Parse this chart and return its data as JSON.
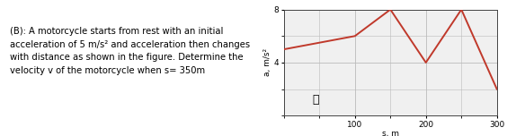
{
  "xlabel": "s, m",
  "ylabel": "a, m/s²",
  "xlim": [
    0,
    300
  ],
  "ylim": [
    0,
    8
  ],
  "xticks": [
    100,
    200,
    300
  ],
  "yticks": [
    4,
    8
  ],
  "line_x": [
    0,
    100,
    150,
    200,
    250,
    300
  ],
  "line_y": [
    5,
    6,
    8,
    4,
    8,
    2
  ],
  "line_color": "#c0392b",
  "line_width": 1.4,
  "grid_color": "#bbbbbb",
  "bg_color": "#f0f0f0",
  "text_line1": "(B): A motorcycle starts from rest with an initial",
  "text_line2": "acceleration of 5 m/s² and acceleration then changes",
  "text_line3": "with distance as shown in the figure. Determine the",
  "text_line4": "velocity v of the motorcycle when s= 350m",
  "text_fontsize": 7.2,
  "fig_width": 5.64,
  "fig_height": 1.52,
  "dpi": 100
}
